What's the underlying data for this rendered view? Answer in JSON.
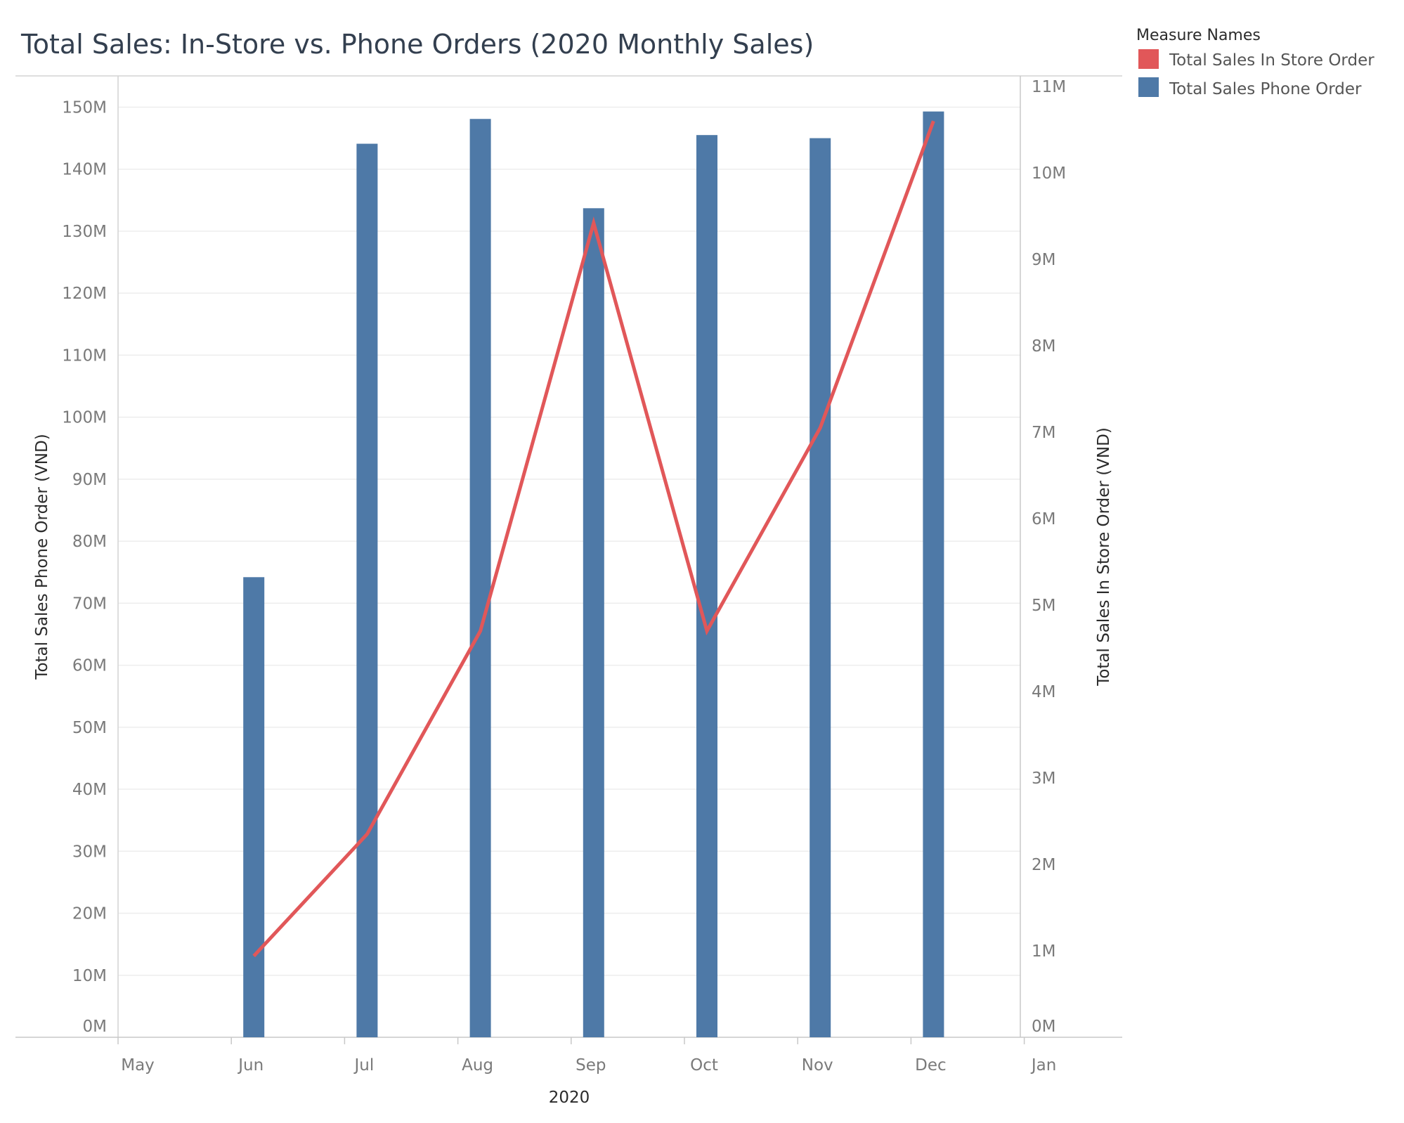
{
  "chart_data": {
    "type": "bar",
    "title": "Total Sales: In-Store vs. Phone Orders (2020 Monthly Sales)",
    "xlabel": "2020",
    "ylabel": "Total Sales Phone Order (VND)",
    "y2label": "Total Sales In Store Order (VND)",
    "x_ticks": [
      "May",
      "Jun",
      "Jul",
      "Aug",
      "Sep",
      "Oct",
      "Nov",
      "Dec",
      "Jan"
    ],
    "categories": [
      "Jun",
      "Jul",
      "Aug",
      "Sep",
      "Oct",
      "Nov",
      "Dec"
    ],
    "ylim": [
      0,
      155
    ],
    "y2lim": [
      0,
      11.15
    ],
    "y_ticks": [
      "0M",
      "10M",
      "20M",
      "30M",
      "40M",
      "50M",
      "60M",
      "70M",
      "80M",
      "90M",
      "100M",
      "110M",
      "120M",
      "130M",
      "140M",
      "150M"
    ],
    "y2_ticks": [
      "0M",
      "1M",
      "2M",
      "3M",
      "4M",
      "5M",
      "6M",
      "7M",
      "8M",
      "9M",
      "10M",
      "11M"
    ],
    "grid": true,
    "legend_position": "right",
    "legend": {
      "title": "Measure Names",
      "items": [
        "Total Sales In Store Order",
        "Total Sales Phone Order"
      ]
    },
    "series": [
      {
        "name": "Total Sales Phone Order",
        "type": "bar",
        "axis": "left",
        "unit": "M",
        "color": "#4e79a7",
        "values": [
          74.2,
          144.1,
          148.1,
          133.7,
          145.5,
          145.0,
          149.3
        ]
      },
      {
        "name": "Total Sales In Store Order",
        "type": "line",
        "axis": "right",
        "unit": "M",
        "color": "#e15759",
        "values": [
          0.94,
          2.35,
          4.7,
          9.42,
          4.7,
          7.05,
          10.6
        ]
      }
    ]
  }
}
